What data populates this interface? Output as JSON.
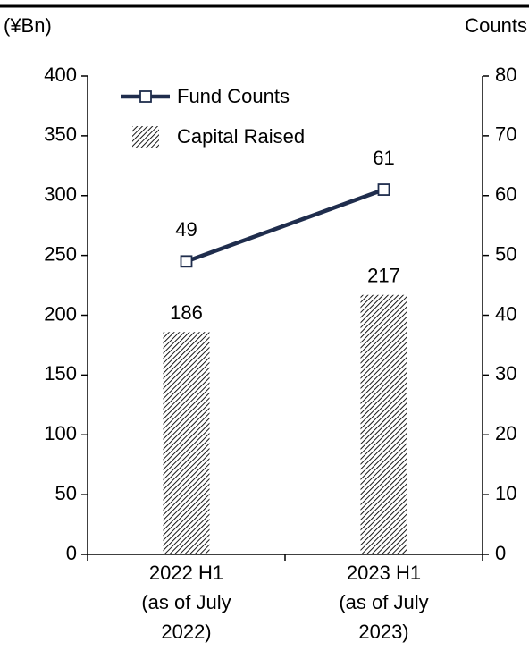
{
  "chart_data": {
    "type": "bar-line",
    "y_label": "(¥Bn)",
    "y2_label": "Counts",
    "categories": [
      [
        "2022 H1",
        "(as of July",
        "2022)"
      ],
      [
        "2023 H1",
        "(as of July",
        "2023)"
      ]
    ],
    "series": [
      {
        "name": "Capital Raised",
        "type": "bar",
        "color": "#000000",
        "values": [
          186,
          217
        ]
      },
      {
        "name": "Fund Counts",
        "type": "line",
        "axis": "y2",
        "color": "#1f2d4d",
        "values": [
          49,
          61
        ]
      }
    ],
    "ylim": [
      0,
      400
    ],
    "yticks": [
      0,
      50,
      100,
      150,
      200,
      250,
      300,
      350,
      400
    ],
    "y2lim": [
      0,
      80
    ],
    "y2ticks": [
      0,
      10,
      20,
      30,
      40,
      50,
      60,
      70,
      80
    ],
    "legend": "upper left"
  }
}
